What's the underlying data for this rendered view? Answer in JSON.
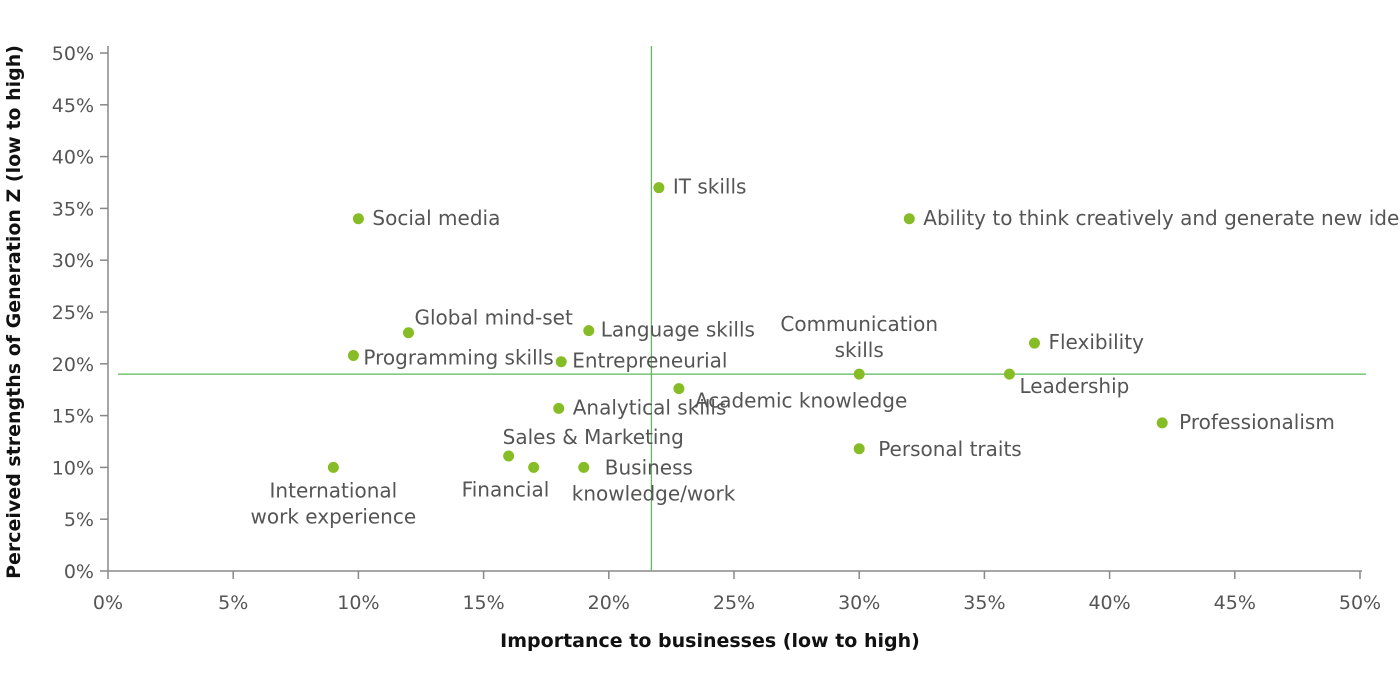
{
  "chart_data": {
    "type": "scatter",
    "title": "",
    "xlabel": "Importance to businesses (low to high)",
    "ylabel": "Perceived strengths of Generation Z (low to high)",
    "xlim": [
      0,
      50
    ],
    "ylim": [
      0,
      50
    ],
    "x_ticks": [
      "0%",
      "5%",
      "10%",
      "15%",
      "20%",
      "25%",
      "30%",
      "35%",
      "40%",
      "45%",
      "50%"
    ],
    "y_ticks": [
      "0%",
      "5%",
      "10%",
      "15%",
      "20%",
      "25%",
      "30%",
      "35%",
      "40%",
      "45%",
      "50%"
    ],
    "reference_lines": {
      "x": 21.7,
      "y": 19
    },
    "grid": false,
    "colors": {
      "point": "#86bc25",
      "reference_line": "#5cb85c",
      "axis": "#888888"
    },
    "points": [
      {
        "label": "IT skills",
        "x": 22,
        "y": 37
      },
      {
        "label": "Social media",
        "x": 10,
        "y": 34
      },
      {
        "label": "Ability to think creatively and generate new ideas",
        "x": 32,
        "y": 34
      },
      {
        "label": "Global mind-set",
        "x": 12,
        "y": 23
      },
      {
        "label": "Language skills",
        "x": 19.2,
        "y": 23.2
      },
      {
        "label": "Programming skills",
        "x": 9.8,
        "y": 20.8
      },
      {
        "label": "Entrepreneurial",
        "x": 18.1,
        "y": 20.2
      },
      {
        "label": "Communication skills",
        "x": 30,
        "y": 19
      },
      {
        "label": "Flexibility",
        "x": 37,
        "y": 22
      },
      {
        "label": "Leadership",
        "x": 36,
        "y": 19
      },
      {
        "label": "Academic knowledge",
        "x": 22.8,
        "y": 17.6
      },
      {
        "label": "Analytical skills",
        "x": 18,
        "y": 15.7
      },
      {
        "label": "Professionalism",
        "x": 42.1,
        "y": 14.3
      },
      {
        "label": "Personal traits",
        "x": 30,
        "y": 11.8
      },
      {
        "label": "Sales & Marketing",
        "x": 16,
        "y": 11.1
      },
      {
        "label": "Financial",
        "x": 17,
        "y": 10
      },
      {
        "label": "Business knowledge/work",
        "x": 19,
        "y": 10
      },
      {
        "label": "International work experience",
        "x": 9,
        "y": 10
      }
    ]
  }
}
